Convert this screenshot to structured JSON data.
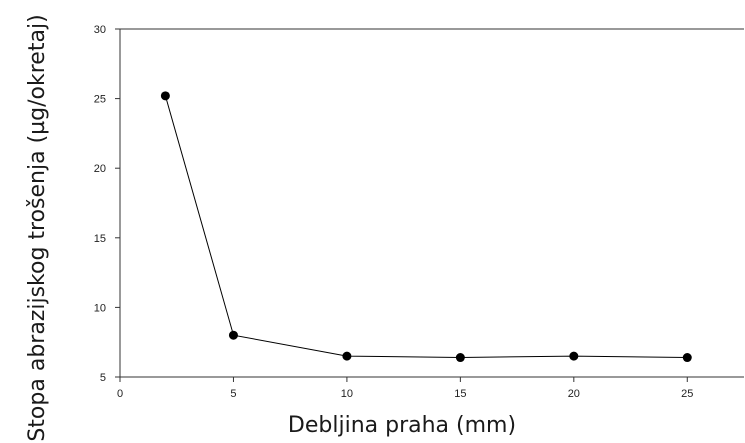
{
  "chart_data": {
    "type": "line",
    "xlabel": "Debljina praha (mm)",
    "ylabel": "Stopa abrazijskog trošenja (µg/okretaj)",
    "x": [
      2,
      5,
      10,
      15,
      20,
      25
    ],
    "series": [
      {
        "values": [
          25.2,
          8.0,
          6.5,
          6.4,
          6.5,
          6.4
        ]
      }
    ],
    "xlim": [
      0,
      27.5
    ],
    "ylim": [
      5,
      30
    ],
    "xticks": [
      "0",
      "5",
      "10",
      "15",
      "20",
      "25"
    ],
    "yticks": [
      "5",
      "10",
      "15",
      "20",
      "25",
      "30"
    ],
    "grid": false,
    "line_color": "#000000",
    "marker_color": "#000000"
  }
}
